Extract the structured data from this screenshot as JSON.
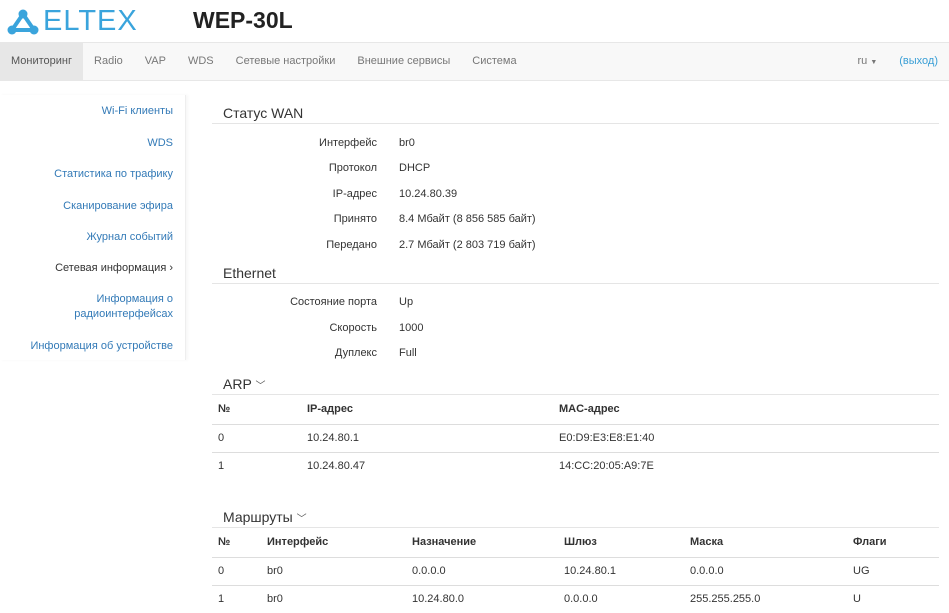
{
  "header": {
    "logo": "ELTEX",
    "title": "WEP-30L"
  },
  "nav": {
    "items": [
      "Мониторинг",
      "Radio",
      "VAP",
      "WDS",
      "Сетевые настройки",
      "Внешние сервисы",
      "Система"
    ],
    "lang": "ru",
    "exit": "(выход)"
  },
  "sidebar": {
    "items": [
      "Wi-Fi клиенты",
      "WDS",
      "Статистика по трафику",
      "Сканирование эфира",
      "Журнал событий",
      "Сетевая информация ›",
      "Информация о радиоинтерфейсах",
      "Информация об устройстве"
    ]
  },
  "wan": {
    "title": "Статус WAN",
    "rows": [
      {
        "k": "Интерфейс",
        "v": "br0"
      },
      {
        "k": "Протокол",
        "v": "DHCP"
      },
      {
        "k": "IP-адрес",
        "v": "10.24.80.39"
      },
      {
        "k": "Принято",
        "v": "8.4 Мбайт (8 856 585 байт)"
      },
      {
        "k": "Передано",
        "v": "2.7 Мбайт (2 803 719 байт)"
      }
    ]
  },
  "ethernet": {
    "title": "Ethernet",
    "rows": [
      {
        "k": "Состояние порта",
        "v": "Up"
      },
      {
        "k": "Скорость",
        "v": "1000"
      },
      {
        "k": "Дуплекс",
        "v": "Full"
      }
    ]
  },
  "arp": {
    "title": "ARP",
    "headers": [
      "№",
      "IP-адрес",
      "MAC-адрес"
    ],
    "rows": [
      [
        "0",
        "10.24.80.1",
        "E0:D9:E3:E8:E1:40"
      ],
      [
        "1",
        "10.24.80.47",
        "14:CC:20:05:A9:7E"
      ]
    ]
  },
  "routes": {
    "title": "Маршруты",
    "headers": [
      "№",
      "Интерфейс",
      "Назначение",
      "Шлюз",
      "Маска",
      "Флаги"
    ],
    "rows": [
      [
        "0",
        "br0",
        "0.0.0.0",
        "10.24.80.1",
        "0.0.0.0",
        "UG"
      ],
      [
        "1",
        "br0",
        "10.24.80.0",
        "0.0.0.0",
        "255.255.255.0",
        "U"
      ]
    ]
  },
  "colors": {
    "accent": "#3aa4dc",
    "link": "#337ab7"
  }
}
